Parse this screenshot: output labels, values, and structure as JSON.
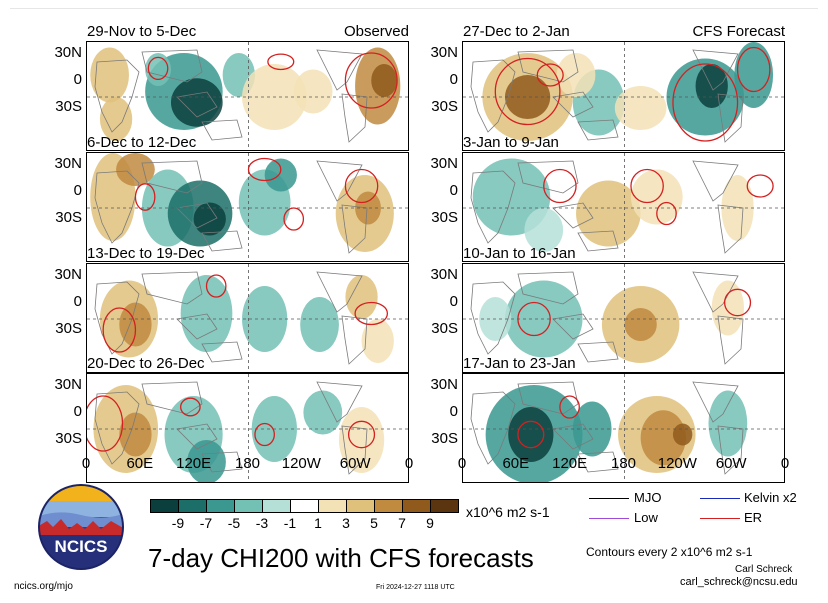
{
  "panels": [
    {
      "title": "29-Nov to 5-Dec",
      "label": "Observed"
    },
    {
      "title": "27-Dec to 2-Jan",
      "label": "CFS Forecast"
    },
    {
      "title": "6-Dec to 12-Dec",
      "label": ""
    },
    {
      "title": "3-Jan to 9-Jan",
      "label": ""
    },
    {
      "title": "13-Dec to 19-Dec",
      "label": ""
    },
    {
      "title": "10-Jan to 16-Jan",
      "label": ""
    },
    {
      "title": "20-Dec to 26-Dec",
      "label": ""
    },
    {
      "title": "17-Jan to 23-Jan",
      "label": ""
    }
  ],
  "lat_labels": [
    "30N",
    "0",
    "30S"
  ],
  "lon_labels": [
    "0",
    "60E",
    "120E",
    "180",
    "120W",
    "60W",
    "0"
  ],
  "colorbar": {
    "ticks": [
      "-9",
      "-7",
      "-5",
      "-3",
      "-1",
      "1",
      "3",
      "5",
      "7",
      "9"
    ],
    "colors": [
      "#0b3f3d",
      "#1c6e69",
      "#3a9890",
      "#73c0b5",
      "#b5e0d8",
      "#ffffff",
      "#f3e2b6",
      "#e0c17c",
      "#c08a3f",
      "#8f5a1c",
      "#5a3510"
    ],
    "units": "x10^6 m2 s-1"
  },
  "legend": {
    "items": [
      {
        "label": "MJO",
        "color": "#000000"
      },
      {
        "label": "Kelvin x2",
        "color": "#1a2ab8"
      },
      {
        "label": "Low",
        "color": "#a04ad8"
      },
      {
        "label": "ER",
        "color": "#d42020"
      }
    ],
    "contour_note": "Contours every 2 x10^6 m2 s-1",
    "author": "Carl Schreck",
    "email": "carl_schreck@ncsu.edu"
  },
  "logo_text": "NCICS",
  "main_title": "7-day CHI200 with CFS forecasts",
  "url": "ncics.org/mjo",
  "timestamp": "Fri 2024-12-27 1118 UTC"
}
